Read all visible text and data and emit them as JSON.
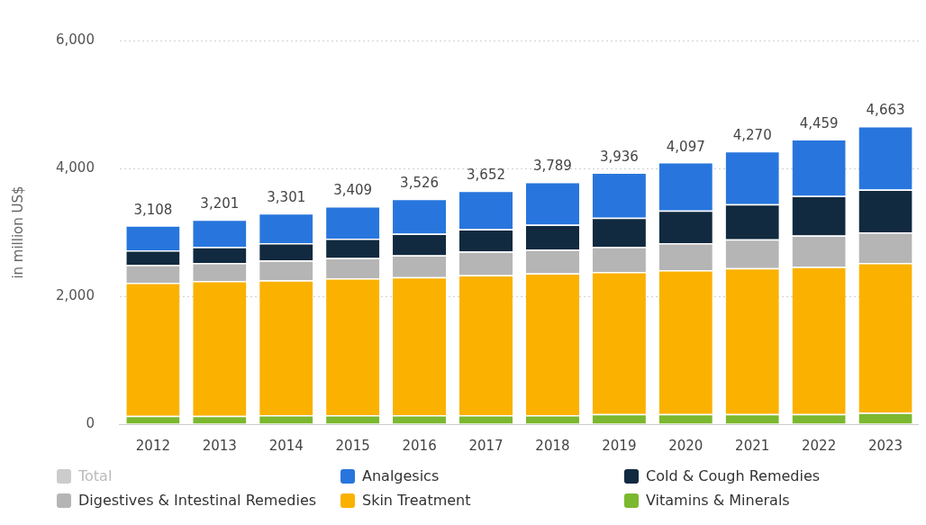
{
  "chart_data": {
    "type": "bar",
    "stacked": true,
    "ylabel": "in million US$",
    "categories": [
      "2012",
      "2013",
      "2014",
      "2015",
      "2016",
      "2017",
      "2018",
      "2019",
      "2020",
      "2021",
      "2022",
      "2023"
    ],
    "ylim": [
      0,
      6000
    ],
    "yticks": [
      {
        "value": 0,
        "label": "0"
      },
      {
        "value": 2000,
        "label": "2,000"
      },
      {
        "value": 4000,
        "label": "4,000"
      },
      {
        "value": 6000,
        "label": "6,000"
      }
    ],
    "grid": "y",
    "legend": "bottom",
    "series": [
      {
        "name": "Vitamins & Minerals",
        "color": "#7cb82f",
        "values": [
          130,
          130,
          140,
          140,
          140,
          140,
          140,
          160,
          160,
          160,
          160,
          180
        ]
      },
      {
        "name": "Skin Treatment",
        "color": "#fbb100",
        "values": [
          2080,
          2110,
          2110,
          2140,
          2160,
          2190,
          2220,
          2220,
          2250,
          2280,
          2300,
          2340
        ]
      },
      {
        "name": "Digestives & Intestinal Remedies",
        "color": "#b5b5b5",
        "values": [
          280,
          280,
          310,
          320,
          340,
          370,
          370,
          390,
          420,
          450,
          490,
          480
        ]
      },
      {
        "name": "Cold & Cough Remedies",
        "color": "#112a3f",
        "values": [
          230,
          250,
          270,
          300,
          340,
          350,
          390,
          460,
          510,
          550,
          620,
          670
        ]
      },
      {
        "name": "Analgesics",
        "color": "#2876dd",
        "values": [
          388,
          431,
          471,
          509,
          546,
          602,
          669,
          706,
          757,
          830,
          889,
          993
        ]
      },
      {
        "name": "Total",
        "type": "line",
        "color": "#cccccc",
        "values": [
          null,
          null,
          null,
          null,
          null,
          null,
          null,
          null,
          null,
          null,
          null,
          null
        ]
      }
    ],
    "totals": [
      "3,108",
      "3,201",
      "3,301",
      "3,409",
      "3,526",
      "3,652",
      "3,789",
      "3,936",
      "4,097",
      "4,270",
      "4,459",
      "4,663"
    ]
  }
}
